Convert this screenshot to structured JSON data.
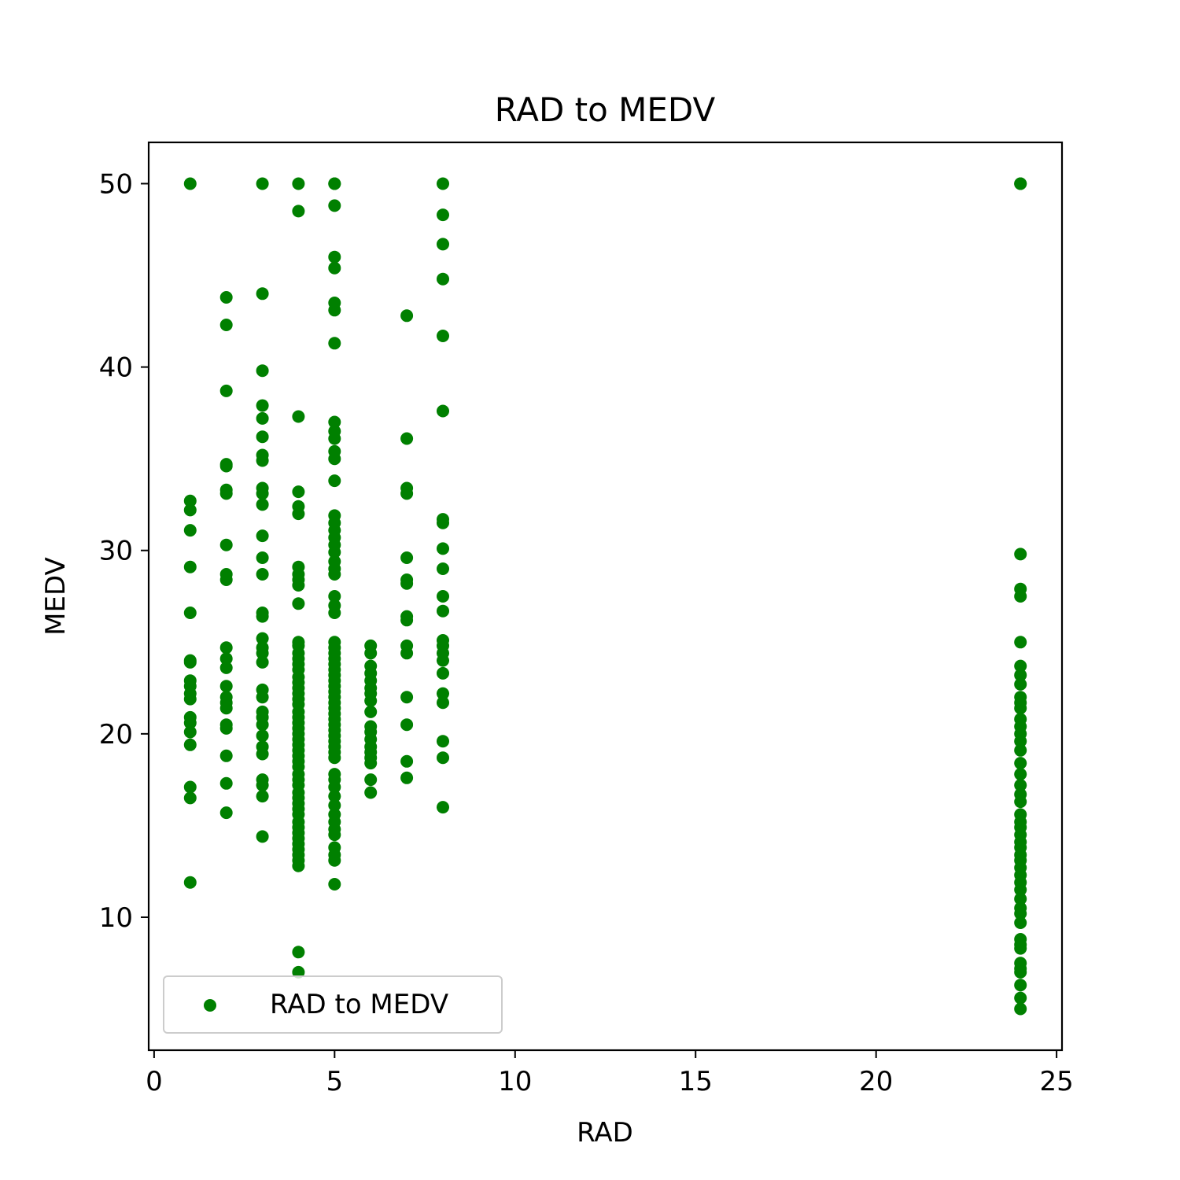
{
  "chart_data": {
    "type": "scatter",
    "title": "RAD to MEDV",
    "xlabel": "RAD",
    "ylabel": "MEDV",
    "xlim": [
      -0.15,
      25.15
    ],
    "ylim": [
      2.75,
      52.25
    ],
    "xticks": [
      0,
      5,
      10,
      15,
      20,
      25
    ],
    "yticks": [
      10,
      20,
      30,
      40,
      50
    ],
    "grid": false,
    "legend": "lower-left",
    "marker_color": "#008000",
    "series": [
      {
        "name": "RAD to MEDV",
        "points": [
          [
            1,
            50.0
          ],
          [
            1,
            32.7
          ],
          [
            1,
            32.2
          ],
          [
            1,
            31.1
          ],
          [
            1,
            29.1
          ],
          [
            1,
            26.6
          ],
          [
            1,
            24.0
          ],
          [
            1,
            23.9
          ],
          [
            1,
            22.9
          ],
          [
            1,
            22.6
          ],
          [
            1,
            22.2
          ],
          [
            1,
            21.9
          ],
          [
            1,
            20.9
          ],
          [
            1,
            20.6
          ],
          [
            1,
            20.1
          ],
          [
            1,
            19.4
          ],
          [
            1,
            17.1
          ],
          [
            1,
            16.5
          ],
          [
            1,
            11.9
          ],
          [
            2,
            43.8
          ],
          [
            2,
            42.3
          ],
          [
            2,
            38.7
          ],
          [
            2,
            34.7
          ],
          [
            2,
            34.6
          ],
          [
            2,
            33.3
          ],
          [
            2,
            33.1
          ],
          [
            2,
            30.3
          ],
          [
            2,
            28.7
          ],
          [
            2,
            28.4
          ],
          [
            2,
            24.7
          ],
          [
            2,
            24.1
          ],
          [
            2,
            23.6
          ],
          [
            2,
            22.6
          ],
          [
            2,
            22.0
          ],
          [
            2,
            21.7
          ],
          [
            2,
            21.4
          ],
          [
            2,
            20.5
          ],
          [
            2,
            20.3
          ],
          [
            2,
            18.8
          ],
          [
            2,
            17.3
          ],
          [
            2,
            15.7
          ],
          [
            3,
            50.0
          ],
          [
            3,
            44.0
          ],
          [
            3,
            39.8
          ],
          [
            3,
            37.9
          ],
          [
            3,
            37.2
          ],
          [
            3,
            36.2
          ],
          [
            3,
            35.2
          ],
          [
            3,
            34.9
          ],
          [
            3,
            33.4
          ],
          [
            3,
            33.1
          ],
          [
            3,
            32.5
          ],
          [
            3,
            30.8
          ],
          [
            3,
            29.6
          ],
          [
            3,
            28.7
          ],
          [
            3,
            26.6
          ],
          [
            3,
            26.4
          ],
          [
            3,
            25.2
          ],
          [
            3,
            24.7
          ],
          [
            3,
            24.4
          ],
          [
            3,
            23.9
          ],
          [
            3,
            22.4
          ],
          [
            3,
            22.0
          ],
          [
            3,
            21.2
          ],
          [
            3,
            20.9
          ],
          [
            3,
            20.5
          ],
          [
            3,
            19.9
          ],
          [
            3,
            19.3
          ],
          [
            3,
            18.9
          ],
          [
            3,
            17.5
          ],
          [
            3,
            17.2
          ],
          [
            3,
            16.6
          ],
          [
            3,
            14.4
          ],
          [
            4,
            50.0
          ],
          [
            4,
            48.5
          ],
          [
            4,
            37.3
          ],
          [
            4,
            33.2
          ],
          [
            4,
            32.4
          ],
          [
            4,
            32.0
          ],
          [
            4,
            29.1
          ],
          [
            4,
            28.7
          ],
          [
            4,
            28.4
          ],
          [
            4,
            28.1
          ],
          [
            4,
            27.1
          ],
          [
            4,
            25.0
          ],
          [
            4,
            24.8
          ],
          [
            4,
            24.4
          ],
          [
            4,
            24.1
          ],
          [
            4,
            23.8
          ],
          [
            4,
            23.5
          ],
          [
            4,
            23.1
          ],
          [
            4,
            22.8
          ],
          [
            4,
            22.5
          ],
          [
            4,
            22.2
          ],
          [
            4,
            21.9
          ],
          [
            4,
            21.6
          ],
          [
            4,
            21.2
          ],
          [
            4,
            20.9
          ],
          [
            4,
            20.6
          ],
          [
            4,
            20.3
          ],
          [
            4,
            20.0
          ],
          [
            4,
            19.7
          ],
          [
            4,
            19.4
          ],
          [
            4,
            19.1
          ],
          [
            4,
            18.8
          ],
          [
            4,
            18.5
          ],
          [
            4,
            18.2
          ],
          [
            4,
            17.8
          ],
          [
            4,
            17.5
          ],
          [
            4,
            17.2
          ],
          [
            4,
            16.8
          ],
          [
            4,
            16.5
          ],
          [
            4,
            16.2
          ],
          [
            4,
            15.9
          ],
          [
            4,
            15.6
          ],
          [
            4,
            15.2
          ],
          [
            4,
            14.9
          ],
          [
            4,
            14.6
          ],
          [
            4,
            14.3
          ],
          [
            4,
            14.0
          ],
          [
            4,
            13.7
          ],
          [
            4,
            13.4
          ],
          [
            4,
            13.1
          ],
          [
            4,
            12.8
          ],
          [
            4,
            8.1
          ],
          [
            4,
            7.0
          ],
          [
            5,
            50.0
          ],
          [
            5,
            50.0
          ],
          [
            5,
            48.8
          ],
          [
            5,
            46.0
          ],
          [
            5,
            45.4
          ],
          [
            5,
            43.5
          ],
          [
            5,
            43.1
          ],
          [
            5,
            41.3
          ],
          [
            5,
            37.0
          ],
          [
            5,
            36.5
          ],
          [
            5,
            36.1
          ],
          [
            5,
            35.4
          ],
          [
            5,
            35.0
          ],
          [
            5,
            33.8
          ],
          [
            5,
            31.9
          ],
          [
            5,
            31.5
          ],
          [
            5,
            31.1
          ],
          [
            5,
            30.7
          ],
          [
            5,
            30.3
          ],
          [
            5,
            29.9
          ],
          [
            5,
            29.4
          ],
          [
            5,
            29.0
          ],
          [
            5,
            28.7
          ],
          [
            5,
            27.5
          ],
          [
            5,
            27.0
          ],
          [
            5,
            26.6
          ],
          [
            5,
            25.0
          ],
          [
            5,
            24.7
          ],
          [
            5,
            24.4
          ],
          [
            5,
            24.1
          ],
          [
            5,
            23.8
          ],
          [
            5,
            23.5
          ],
          [
            5,
            23.2
          ],
          [
            5,
            22.9
          ],
          [
            5,
            22.6
          ],
          [
            5,
            22.3
          ],
          [
            5,
            22.0
          ],
          [
            5,
            21.7
          ],
          [
            5,
            21.4
          ],
          [
            5,
            21.1
          ],
          [
            5,
            20.8
          ],
          [
            5,
            20.5
          ],
          [
            5,
            20.2
          ],
          [
            5,
            19.9
          ],
          [
            5,
            19.6
          ],
          [
            5,
            19.3
          ],
          [
            5,
            19.0
          ],
          [
            5,
            18.7
          ],
          [
            5,
            17.8
          ],
          [
            5,
            17.5
          ],
          [
            5,
            17.1
          ],
          [
            5,
            16.6
          ],
          [
            5,
            16.1
          ],
          [
            5,
            15.6
          ],
          [
            5,
            15.2
          ],
          [
            5,
            14.8
          ],
          [
            5,
            14.5
          ],
          [
            5,
            13.8
          ],
          [
            5,
            13.4
          ],
          [
            5,
            13.1
          ],
          [
            5,
            11.8
          ],
          [
            6,
            24.8
          ],
          [
            6,
            24.4
          ],
          [
            6,
            23.7
          ],
          [
            6,
            23.3
          ],
          [
            6,
            22.9
          ],
          [
            6,
            22.5
          ],
          [
            6,
            22.2
          ],
          [
            6,
            21.8
          ],
          [
            6,
            21.2
          ],
          [
            6,
            20.4
          ],
          [
            6,
            20.1
          ],
          [
            6,
            19.7
          ],
          [
            6,
            19.3
          ],
          [
            6,
            19.0
          ],
          [
            6,
            18.7
          ],
          [
            6,
            18.4
          ],
          [
            6,
            17.5
          ],
          [
            6,
            16.8
          ],
          [
            7,
            42.8
          ],
          [
            7,
            36.1
          ],
          [
            7,
            33.4
          ],
          [
            7,
            33.1
          ],
          [
            7,
            29.6
          ],
          [
            7,
            28.4
          ],
          [
            7,
            28.2
          ],
          [
            7,
            26.4
          ],
          [
            7,
            26.2
          ],
          [
            7,
            24.8
          ],
          [
            7,
            24.4
          ],
          [
            7,
            22.0
          ],
          [
            7,
            20.5
          ],
          [
            7,
            18.5
          ],
          [
            7,
            17.6
          ],
          [
            8,
            50.0
          ],
          [
            8,
            48.3
          ],
          [
            8,
            46.7
          ],
          [
            8,
            44.8
          ],
          [
            8,
            41.7
          ],
          [
            8,
            37.6
          ],
          [
            8,
            31.7
          ],
          [
            8,
            31.5
          ],
          [
            8,
            30.1
          ],
          [
            8,
            29.0
          ],
          [
            8,
            27.5
          ],
          [
            8,
            26.7
          ],
          [
            8,
            25.1
          ],
          [
            8,
            24.8
          ],
          [
            8,
            24.4
          ],
          [
            8,
            24.0
          ],
          [
            8,
            23.3
          ],
          [
            8,
            22.2
          ],
          [
            8,
            21.7
          ],
          [
            8,
            19.6
          ],
          [
            8,
            18.7
          ],
          [
            8,
            16.0
          ],
          [
            24,
            50.0
          ],
          [
            24,
            50.0
          ],
          [
            24,
            29.8
          ],
          [
            24,
            27.9
          ],
          [
            24,
            27.5
          ],
          [
            24,
            25.0
          ],
          [
            24,
            23.7
          ],
          [
            24,
            23.2
          ],
          [
            24,
            22.7
          ],
          [
            24,
            22.0
          ],
          [
            24,
            21.7
          ],
          [
            24,
            21.4
          ],
          [
            24,
            20.8
          ],
          [
            24,
            20.4
          ],
          [
            24,
            20.0
          ],
          [
            24,
            19.6
          ],
          [
            24,
            19.1
          ],
          [
            24,
            18.4
          ],
          [
            24,
            17.8
          ],
          [
            24,
            17.2
          ],
          [
            24,
            16.7
          ],
          [
            24,
            16.3
          ],
          [
            24,
            15.6
          ],
          [
            24,
            15.2
          ],
          [
            24,
            14.9
          ],
          [
            24,
            14.5
          ],
          [
            24,
            14.1
          ],
          [
            24,
            13.8
          ],
          [
            24,
            13.4
          ],
          [
            24,
            13.1
          ],
          [
            24,
            12.7
          ],
          [
            24,
            12.3
          ],
          [
            24,
            11.9
          ],
          [
            24,
            11.5
          ],
          [
            24,
            11.0
          ],
          [
            24,
            10.5
          ],
          [
            24,
            10.2
          ],
          [
            24,
            9.7
          ],
          [
            24,
            8.8
          ],
          [
            24,
            8.5
          ],
          [
            24,
            8.3
          ],
          [
            24,
            7.5
          ],
          [
            24,
            7.2
          ],
          [
            24,
            7.0
          ],
          [
            24,
            6.3
          ],
          [
            24,
            5.6
          ],
          [
            24,
            5.0
          ]
        ]
      }
    ]
  }
}
